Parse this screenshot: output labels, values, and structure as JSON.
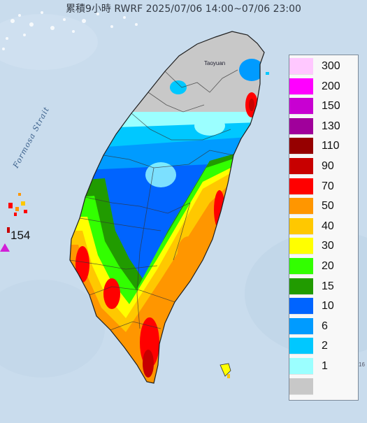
{
  "title": "累積9小時 RWRF 2025/07/06 14:00~07/06 23:00",
  "map_labels": {
    "strait": "Formosa Strait",
    "city": "Taoyuan",
    "edge": "16"
  },
  "max_value": "154",
  "legend": {
    "entries": [
      {
        "label": "300",
        "color": "#ffc8ff"
      },
      {
        "label": "200",
        "color": "#ff00ff"
      },
      {
        "label": "150",
        "color": "#c800d2"
      },
      {
        "label": "130",
        "color": "#a0009b"
      },
      {
        "label": "110",
        "color": "#960000"
      },
      {
        "label": "90",
        "color": "#c80000"
      },
      {
        "label": "70",
        "color": "#ff0000"
      },
      {
        "label": "50",
        "color": "#ff9600"
      },
      {
        "label": "40",
        "color": "#ffc800"
      },
      {
        "label": "30",
        "color": "#ffff00"
      },
      {
        "label": "20",
        "color": "#32ff00"
      },
      {
        "label": "15",
        "color": "#219b00"
      },
      {
        "label": "10",
        "color": "#0064ff"
      },
      {
        "label": "6",
        "color": "#009bff"
      },
      {
        "label": "2",
        "color": "#00c8ff"
      },
      {
        "label": "1",
        "color": "#9bffff"
      },
      {
        "label": "",
        "color": "#c8c8c8"
      }
    ]
  },
  "colors": {
    "sea": "#c9dced",
    "no_rain": "#c8c8c8",
    "marker": "#d21fd8"
  }
}
